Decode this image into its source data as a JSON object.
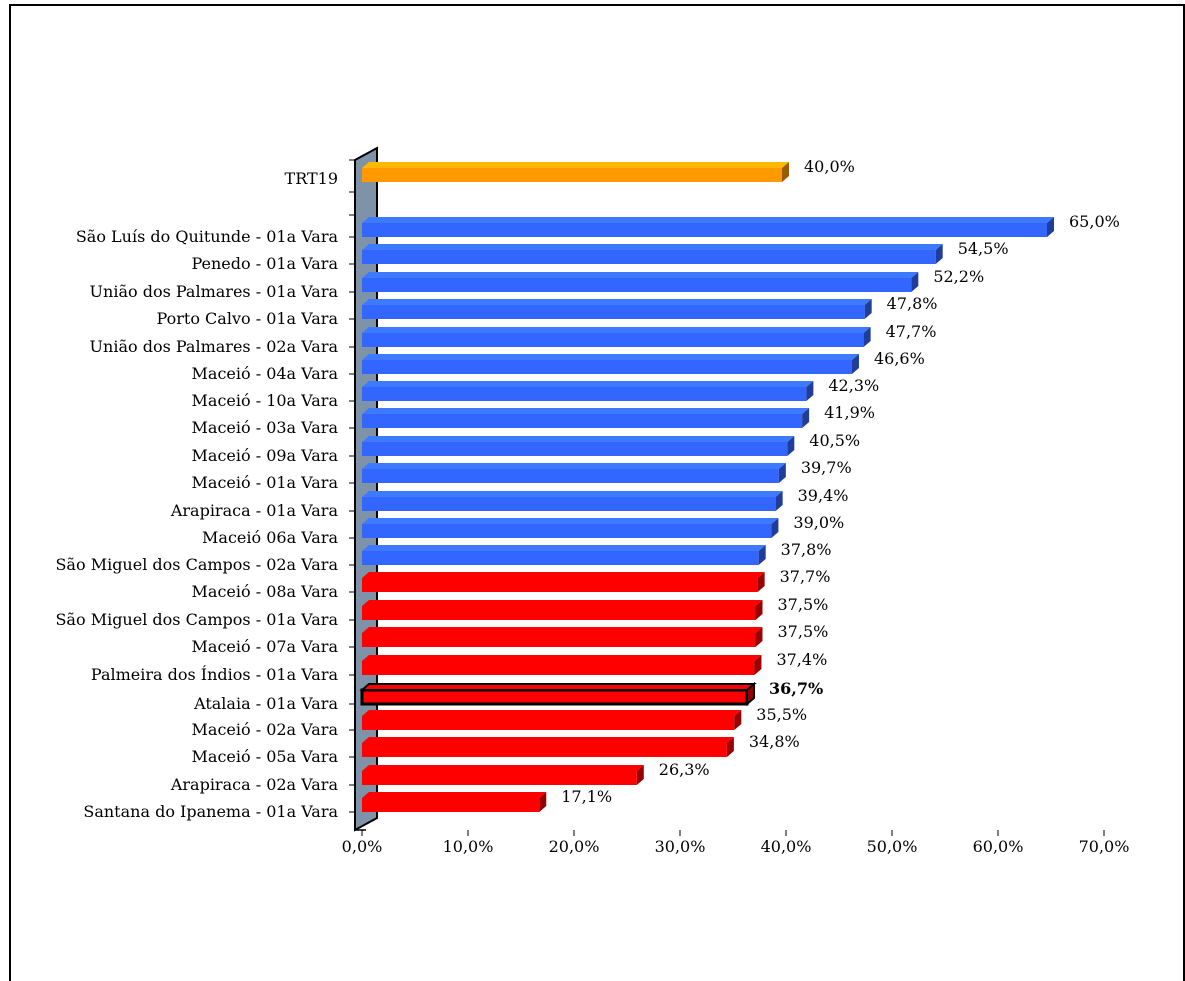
{
  "chart_data": {
    "type": "bar",
    "orientation": "horizontal",
    "categories": [
      "TRT19",
      "São Luís do Quitunde - 01a Vara",
      "Penedo - 01a Vara",
      "União dos Palmares - 01a Vara",
      "Porto Calvo - 01a Vara",
      "União dos Palmares - 02a Vara",
      "Maceió - 04a Vara",
      "Maceió - 10a Vara",
      "Maceió - 03a Vara",
      "Maceió - 09a Vara",
      "Maceió - 01a Vara",
      "Arapiraca - 01a Vara",
      "Maceió   06a Vara",
      "São Miguel dos Campos - 02a Vara",
      "Maceió - 08a Vara",
      "São Miguel dos Campos - 01a Vara",
      "Maceió - 07a Vara",
      "Palmeira dos Índios - 01a Vara",
      "Atalaia - 01a Vara",
      "Maceió - 02a Vara",
      "Maceió - 05a Vara",
      "Arapiraca - 02a Vara",
      "Santana do Ipanema - 01a Vara"
    ],
    "values": [
      40.0,
      65.0,
      54.5,
      52.2,
      47.8,
      47.7,
      46.6,
      42.3,
      41.9,
      40.5,
      39.7,
      39.4,
      39.0,
      37.8,
      37.7,
      37.5,
      37.5,
      37.4,
      36.7,
      35.5,
      34.8,
      26.3,
      17.1
    ],
    "value_labels": [
      "40,0%",
      "65,0%",
      "54,5%",
      "52,2%",
      "47,8%",
      "47,7%",
      "46,6%",
      "42,3%",
      "41,9%",
      "40,5%",
      "39,7%",
      "39,4%",
      "39,0%",
      "37,8%",
      "37,7%",
      "37,5%",
      "37,5%",
      "37,4%",
      "36,7%",
      "35,5%",
      "34,8%",
      "26,3%",
      "17,1%"
    ],
    "bar_groups": [
      "reference",
      "above",
      "above",
      "above",
      "above",
      "above",
      "above",
      "above",
      "above",
      "above",
      "above",
      "above",
      "above",
      "above",
      "below",
      "below",
      "below",
      "below",
      "below",
      "below",
      "below",
      "below",
      "below"
    ],
    "highlighted_category": "Atalaia - 01a Vara",
    "xlim": [
      0,
      70
    ],
    "x_ticks": [
      "0,0%",
      "10,0%",
      "20,0%",
      "30,0%",
      "40,0%",
      "50,0%",
      "60,0%",
      "70,0%"
    ],
    "title": "",
    "xlabel": "",
    "ylabel": "",
    "grid": false,
    "legend": "none",
    "style": "3d"
  },
  "colors": {
    "reference": "#FF9900",
    "above": "#3366FF",
    "below": "#FF0000",
    "wall": "#7F93A8",
    "highlight_outline": "#000000"
  }
}
